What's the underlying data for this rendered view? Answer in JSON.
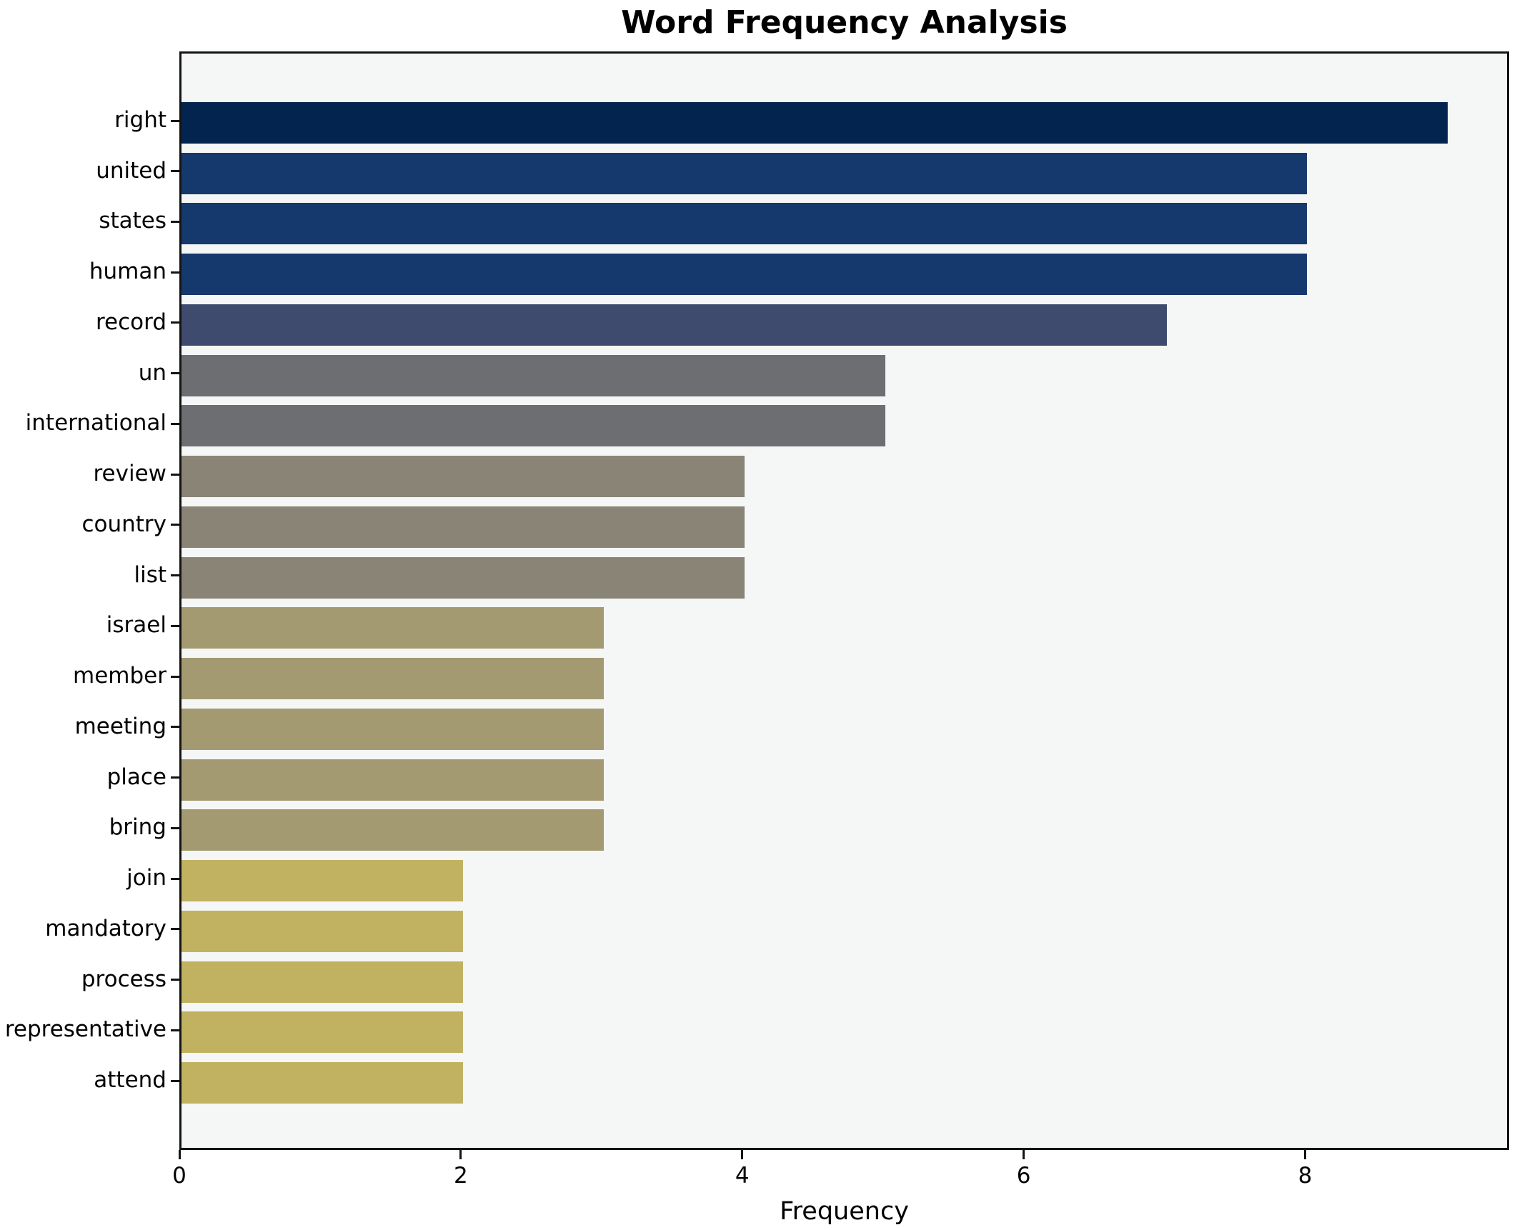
{
  "chart_data": {
    "type": "bar",
    "orientation": "horizontal",
    "title": "Word Frequency Analysis",
    "xlabel": "Frequency",
    "ylabel": "",
    "categories": [
      "right",
      "united",
      "states",
      "human",
      "record",
      "un",
      "international",
      "review",
      "country",
      "list",
      "israel",
      "member",
      "meeting",
      "place",
      "bring",
      "join",
      "mandatory",
      "process",
      "representative",
      "attend"
    ],
    "values": [
      9,
      8,
      8,
      8,
      7,
      5,
      5,
      4,
      4,
      4,
      3,
      3,
      3,
      3,
      3,
      2,
      2,
      2,
      2,
      2
    ],
    "bar_colors": [
      "#02244e",
      "#16396d",
      "#16396d",
      "#16396d",
      "#3e4b6e",
      "#6c6e71",
      "#6c6e71",
      "#8a8476",
      "#8a8476",
      "#8a8476",
      "#a39a71",
      "#a39a71",
      "#a39a71",
      "#a39a71",
      "#a39a71",
      "#c1b262",
      "#c1b262",
      "#c1b262",
      "#c1b262",
      "#c1b262"
    ],
    "x_ticks": [
      0,
      2,
      4,
      6,
      8
    ],
    "xlim": [
      0,
      9.45
    ],
    "grid": false,
    "legend": null,
    "plot_background": "#f5f6f6",
    "figure_background": "#ffffff",
    "spine_color": "#141414",
    "text_color": "#000000"
  }
}
